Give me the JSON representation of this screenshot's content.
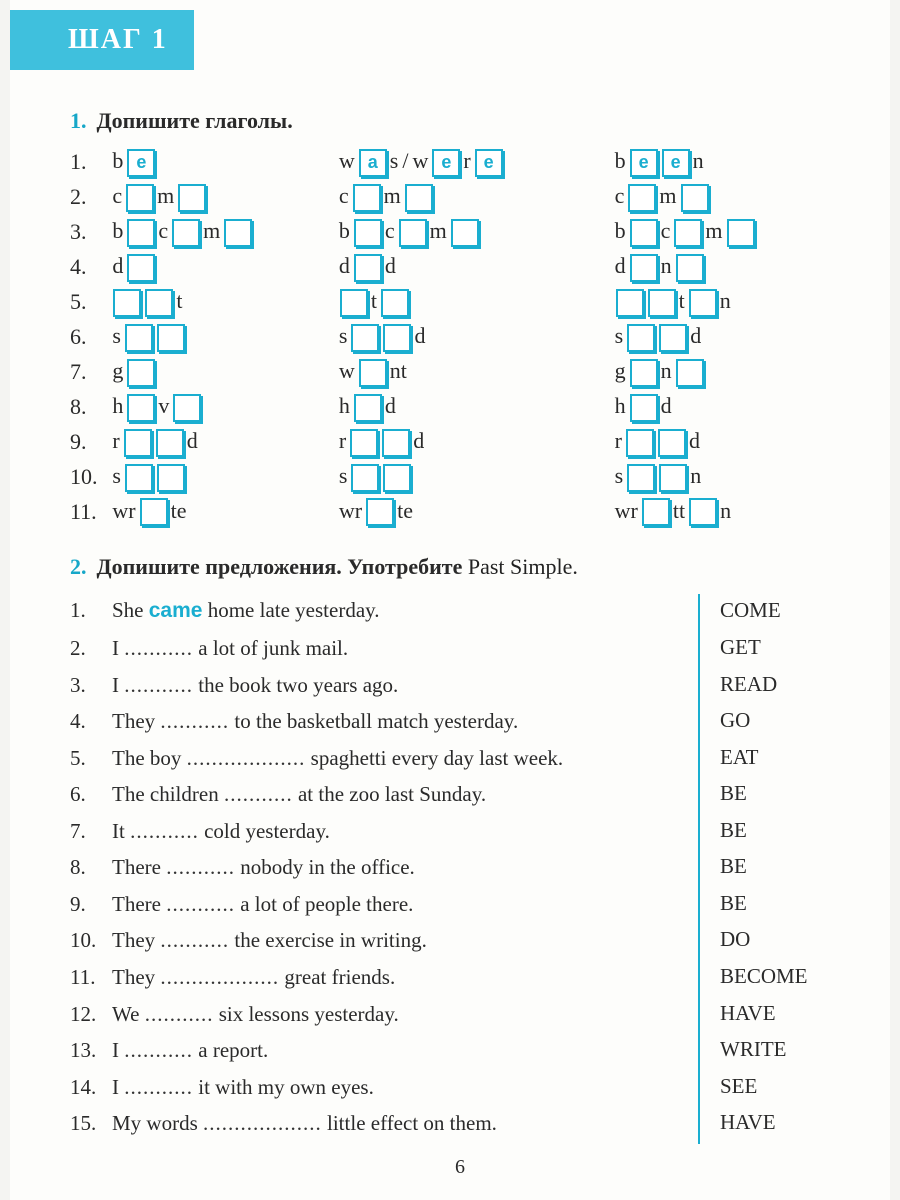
{
  "colors": {
    "accent": "#1aaed0",
    "header_bg": "#3fc0dd",
    "text": "#2a2a2a",
    "page_bg": "#fdfdfb"
  },
  "header": {
    "label": "ШАГ 1"
  },
  "page_number": "6",
  "ex1": {
    "number": "1.",
    "title": "Допишите глаголы.",
    "rows": [
      {
        "n": "1.",
        "a": [
          {
            "t": "c",
            "v": "b"
          },
          {
            "t": "b",
            "v": "e"
          }
        ],
        "b": [
          {
            "t": "c",
            "v": "w"
          },
          {
            "t": "b",
            "v": "a"
          },
          {
            "t": "c",
            "v": "s"
          },
          {
            "t": "s",
            "v": "/"
          },
          {
            "t": "c",
            "v": "w"
          },
          {
            "t": "b",
            "v": "e"
          },
          {
            "t": "c",
            "v": "r"
          },
          {
            "t": "b",
            "v": "e"
          }
        ],
        "c": [
          {
            "t": "c",
            "v": "b"
          },
          {
            "t": "b",
            "v": "e"
          },
          {
            "t": "b",
            "v": "e"
          },
          {
            "t": "c",
            "v": "n"
          }
        ]
      },
      {
        "n": "2.",
        "a": [
          {
            "t": "c",
            "v": "c"
          },
          {
            "t": "b",
            "v": ""
          },
          {
            "t": "c",
            "v": "m"
          },
          {
            "t": "b",
            "v": ""
          }
        ],
        "b": [
          {
            "t": "c",
            "v": "c"
          },
          {
            "t": "b",
            "v": ""
          },
          {
            "t": "c",
            "v": "m"
          },
          {
            "t": "b",
            "v": ""
          }
        ],
        "c": [
          {
            "t": "c",
            "v": "c"
          },
          {
            "t": "b",
            "v": ""
          },
          {
            "t": "c",
            "v": "m"
          },
          {
            "t": "b",
            "v": ""
          }
        ]
      },
      {
        "n": "3.",
        "a": [
          {
            "t": "c",
            "v": "b"
          },
          {
            "t": "b",
            "v": ""
          },
          {
            "t": "c",
            "v": "c"
          },
          {
            "t": "b",
            "v": ""
          },
          {
            "t": "c",
            "v": "m"
          },
          {
            "t": "b",
            "v": ""
          }
        ],
        "b": [
          {
            "t": "c",
            "v": "b"
          },
          {
            "t": "b",
            "v": ""
          },
          {
            "t": "c",
            "v": "c"
          },
          {
            "t": "b",
            "v": ""
          },
          {
            "t": "c",
            "v": "m"
          },
          {
            "t": "b",
            "v": ""
          }
        ],
        "c": [
          {
            "t": "c",
            "v": "b"
          },
          {
            "t": "b",
            "v": ""
          },
          {
            "t": "c",
            "v": "c"
          },
          {
            "t": "b",
            "v": ""
          },
          {
            "t": "c",
            "v": "m"
          },
          {
            "t": "b",
            "v": ""
          }
        ]
      },
      {
        "n": "4.",
        "a": [
          {
            "t": "c",
            "v": "d"
          },
          {
            "t": "b",
            "v": ""
          }
        ],
        "b": [
          {
            "t": "c",
            "v": "d"
          },
          {
            "t": "b",
            "v": ""
          },
          {
            "t": "c",
            "v": "d"
          }
        ],
        "c": [
          {
            "t": "c",
            "v": "d"
          },
          {
            "t": "b",
            "v": ""
          },
          {
            "t": "c",
            "v": "n"
          },
          {
            "t": "b",
            "v": ""
          }
        ]
      },
      {
        "n": "5.",
        "a": [
          {
            "t": "b",
            "v": ""
          },
          {
            "t": "b",
            "v": ""
          },
          {
            "t": "c",
            "v": "t"
          }
        ],
        "b": [
          {
            "t": "b",
            "v": ""
          },
          {
            "t": "c",
            "v": "t"
          },
          {
            "t": "b",
            "v": ""
          }
        ],
        "c": [
          {
            "t": "b",
            "v": ""
          },
          {
            "t": "b",
            "v": ""
          },
          {
            "t": "c",
            "v": "t"
          },
          {
            "t": "b",
            "v": ""
          },
          {
            "t": "c",
            "v": "n"
          }
        ]
      },
      {
        "n": "6.",
        "a": [
          {
            "t": "c",
            "v": "s"
          },
          {
            "t": "b",
            "v": ""
          },
          {
            "t": "b",
            "v": ""
          }
        ],
        "b": [
          {
            "t": "c",
            "v": "s"
          },
          {
            "t": "b",
            "v": ""
          },
          {
            "t": "b",
            "v": ""
          },
          {
            "t": "c",
            "v": "d"
          }
        ],
        "c": [
          {
            "t": "c",
            "v": "s"
          },
          {
            "t": "b",
            "v": ""
          },
          {
            "t": "b",
            "v": ""
          },
          {
            "t": "c",
            "v": "d"
          }
        ]
      },
      {
        "n": "7.",
        "a": [
          {
            "t": "c",
            "v": "g"
          },
          {
            "t": "b",
            "v": ""
          }
        ],
        "b": [
          {
            "t": "c",
            "v": "w"
          },
          {
            "t": "b",
            "v": ""
          },
          {
            "t": "c",
            "v": "nt"
          }
        ],
        "c": [
          {
            "t": "c",
            "v": "g"
          },
          {
            "t": "b",
            "v": ""
          },
          {
            "t": "c",
            "v": "n"
          },
          {
            "t": "b",
            "v": ""
          }
        ]
      },
      {
        "n": "8.",
        "a": [
          {
            "t": "c",
            "v": "h"
          },
          {
            "t": "b",
            "v": ""
          },
          {
            "t": "c",
            "v": "v"
          },
          {
            "t": "b",
            "v": ""
          }
        ],
        "b": [
          {
            "t": "c",
            "v": "h"
          },
          {
            "t": "b",
            "v": ""
          },
          {
            "t": "c",
            "v": "d"
          }
        ],
        "c": [
          {
            "t": "c",
            "v": "h"
          },
          {
            "t": "b",
            "v": ""
          },
          {
            "t": "c",
            "v": "d"
          }
        ]
      },
      {
        "n": "9.",
        "a": [
          {
            "t": "c",
            "v": "r"
          },
          {
            "t": "b",
            "v": ""
          },
          {
            "t": "b",
            "v": ""
          },
          {
            "t": "c",
            "v": "d"
          }
        ],
        "b": [
          {
            "t": "c",
            "v": "r"
          },
          {
            "t": "b",
            "v": ""
          },
          {
            "t": "b",
            "v": ""
          },
          {
            "t": "c",
            "v": "d"
          }
        ],
        "c": [
          {
            "t": "c",
            "v": "r"
          },
          {
            "t": "b",
            "v": ""
          },
          {
            "t": "b",
            "v": ""
          },
          {
            "t": "c",
            "v": "d"
          }
        ]
      },
      {
        "n": "10.",
        "a": [
          {
            "t": "c",
            "v": "s"
          },
          {
            "t": "b",
            "v": ""
          },
          {
            "t": "b",
            "v": ""
          }
        ],
        "b": [
          {
            "t": "c",
            "v": "s"
          },
          {
            "t": "b",
            "v": ""
          },
          {
            "t": "b",
            "v": ""
          }
        ],
        "c": [
          {
            "t": "c",
            "v": "s"
          },
          {
            "t": "b",
            "v": ""
          },
          {
            "t": "b",
            "v": ""
          },
          {
            "t": "c",
            "v": "n"
          }
        ]
      },
      {
        "n": "11.",
        "a": [
          {
            "t": "c",
            "v": "wr"
          },
          {
            "t": "b",
            "v": ""
          },
          {
            "t": "c",
            "v": "te"
          }
        ],
        "b": [
          {
            "t": "c",
            "v": "wr"
          },
          {
            "t": "b",
            "v": ""
          },
          {
            "t": "c",
            "v": "te"
          }
        ],
        "c": [
          {
            "t": "c",
            "v": "wr"
          },
          {
            "t": "b",
            "v": ""
          },
          {
            "t": "c",
            "v": "tt"
          },
          {
            "t": "b",
            "v": ""
          },
          {
            "t": "c",
            "v": "n"
          }
        ]
      }
    ]
  },
  "ex2": {
    "number": "2.",
    "title_bold": "Допишите предложения. Употребите ",
    "title_norm": "Past Simple.",
    "blank": "...........",
    "rows": [
      {
        "n": "1.",
        "pre": "She ",
        "ans": "came",
        "post": " home late yesterday.",
        "hint": "COME"
      },
      {
        "n": "2.",
        "pre": "I ",
        "ans": "",
        "post": " a lot of junk mail.",
        "hint": "GET"
      },
      {
        "n": "3.",
        "pre": "I ",
        "ans": "",
        "post": " the book two years ago.",
        "hint": "READ"
      },
      {
        "n": "4.",
        "pre": "They ",
        "ans": "",
        "post": " to the basketball match yesterday.",
        "hint": "GO"
      },
      {
        "n": "5.",
        "pre": "The boy ",
        "ans": "",
        "post": " spaghetti every day last week.",
        "hint": "EAT",
        "long": true
      },
      {
        "n": "6.",
        "pre": "The children ",
        "ans": "",
        "post": " at the zoo last Sunday.",
        "hint": "BE"
      },
      {
        "n": "7.",
        "pre": "It ",
        "ans": "",
        "post": " cold yesterday.",
        "hint": "BE"
      },
      {
        "n": "8.",
        "pre": "There ",
        "ans": "",
        "post": " nobody in the office.",
        "hint": "BE"
      },
      {
        "n": "9.",
        "pre": "There ",
        "ans": "",
        "post": " a lot of people there.",
        "hint": "BE"
      },
      {
        "n": "10.",
        "pre": "They ",
        "ans": "",
        "post": " the exercise in writing.",
        "hint": "DO"
      },
      {
        "n": "11.",
        "pre": "They ",
        "ans": "",
        "post": " great friends.",
        "hint": "BECOME",
        "long": true
      },
      {
        "n": "12.",
        "pre": "We ",
        "ans": "",
        "post": " six lessons yesterday.",
        "hint": "HAVE"
      },
      {
        "n": "13.",
        "pre": "I ",
        "ans": "",
        "post": " a report.",
        "hint": "WRITE"
      },
      {
        "n": "14.",
        "pre": "I ",
        "ans": "",
        "post": " it with my own eyes.",
        "hint": "SEE"
      },
      {
        "n": "15.",
        "pre": " My words ",
        "ans": "",
        "post": " little effect on them.",
        "hint": "HAVE",
        "long": true
      }
    ]
  }
}
